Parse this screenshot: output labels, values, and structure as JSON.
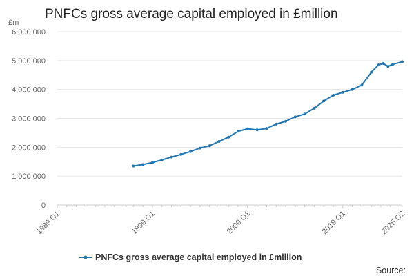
{
  "chart_data": {
    "type": "line",
    "title": "PNFCs gross average capital employed in £million",
    "ylabel": "£m",
    "source_label": "Source:",
    "ylim": [
      0,
      6000000
    ],
    "y_ticks": [
      0,
      1000000,
      2000000,
      3000000,
      4000000,
      5000000,
      6000000
    ],
    "y_tick_labels": [
      "0",
      "1 000 000",
      "2 000 000",
      "3 000 000",
      "4 000 000",
      "5 000 000",
      "6 000 000"
    ],
    "x_tick_labels": [
      "1989 Q1",
      "1999 Q1",
      "2009 Q1",
      "2019 Q1",
      "2025 Q2"
    ],
    "x_range": [
      "1989 Q1",
      "2025 Q2"
    ],
    "grid": true,
    "legend": "bottom",
    "series": [
      {
        "name": "PNFCs gross average capital employed in £million",
        "color": "#1f77b4",
        "x": [
          "1997 Q1",
          "1998 Q1",
          "1999 Q1",
          "2000 Q1",
          "2001 Q1",
          "2002 Q1",
          "2003 Q1",
          "2004 Q1",
          "2005 Q1",
          "2006 Q1",
          "2007 Q1",
          "2008 Q1",
          "2009 Q1",
          "2010 Q1",
          "2011 Q1",
          "2012 Q1",
          "2013 Q1",
          "2014 Q1",
          "2015 Q1",
          "2016 Q1",
          "2017 Q1",
          "2018 Q1",
          "2019 Q1",
          "2020 Q1",
          "2021 Q1",
          "2022 Q1",
          "2022 Q4",
          "2023 Q2",
          "2023 Q4",
          "2024 Q2",
          "2025 Q2"
        ],
        "values": [
          1350000,
          1400000,
          1470000,
          1560000,
          1660000,
          1750000,
          1850000,
          1970000,
          2050000,
          2200000,
          2350000,
          2550000,
          2640000,
          2600000,
          2650000,
          2800000,
          2900000,
          3050000,
          3150000,
          3350000,
          3600000,
          3800000,
          3900000,
          4000000,
          4150000,
          4600000,
          4850000,
          4900000,
          4800000,
          4870000,
          4960000
        ]
      }
    ]
  }
}
